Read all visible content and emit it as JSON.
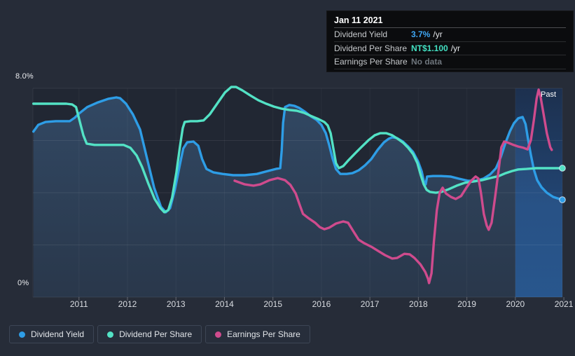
{
  "tooltip": {
    "date": "Jan 11 2021",
    "rows": [
      {
        "label": "Dividend Yield",
        "value": "3.7%",
        "suffix": "/yr",
        "value_color": "#3fa7f4"
      },
      {
        "label": "Dividend Per Share",
        "value": "NT$1.100",
        "suffix": "/yr",
        "value_color": "#43e0c2"
      },
      {
        "label": "Earnings Per Share",
        "value": "No data",
        "suffix": "",
        "value_color": "#6e757c"
      }
    ]
  },
  "legend": {
    "items": [
      {
        "label": "Dividend Yield",
        "color": "#2e9de6"
      },
      {
        "label": "Dividend Per Share",
        "color": "#53e2c5"
      },
      {
        "label": "Earnings Per Share",
        "color": "#cf4b8d"
      }
    ]
  },
  "chart_data": {
    "type": "line",
    "title": "",
    "xlabel": "",
    "ylabel": "",
    "xlim": [
      2010.05,
      2020.97
    ],
    "ylim": [
      0,
      8
    ],
    "y_gridlines_pct": [
      0,
      2,
      4,
      6,
      8
    ],
    "y_axis_labels": {
      "top": "8.0%",
      "bottom": "0%"
    },
    "x_ticks": [
      2011,
      2012,
      2013,
      2014,
      2015,
      2016,
      2017,
      2018,
      2019,
      2020,
      2021
    ],
    "grid": true,
    "legend_position": "bottom",
    "past_region": {
      "start_year": 2020.0,
      "label": "Past"
    },
    "series": [
      {
        "name": "Dividend Yield",
        "unit": "%",
        "color": "#2e9de6",
        "end_dot": true,
        "area_fill": true,
        "points": [
          [
            2010.06,
            6.34
          ],
          [
            2010.16,
            6.6
          ],
          [
            2010.31,
            6.71
          ],
          [
            2010.52,
            6.74
          ],
          [
            2010.81,
            6.74
          ],
          [
            2010.91,
            6.87
          ],
          [
            2011.0,
            7.03
          ],
          [
            2011.17,
            7.28
          ],
          [
            2011.39,
            7.46
          ],
          [
            2011.61,
            7.6
          ],
          [
            2011.77,
            7.65
          ],
          [
            2011.85,
            7.62
          ],
          [
            2011.97,
            7.41
          ],
          [
            2012.11,
            7.01
          ],
          [
            2012.26,
            6.42
          ],
          [
            2012.4,
            5.34
          ],
          [
            2012.55,
            4.19
          ],
          [
            2012.69,
            3.46
          ],
          [
            2012.79,
            3.25
          ],
          [
            2012.88,
            3.41
          ],
          [
            2012.98,
            4.13
          ],
          [
            2013.08,
            5.07
          ],
          [
            2013.15,
            5.69
          ],
          [
            2013.23,
            5.93
          ],
          [
            2013.36,
            5.96
          ],
          [
            2013.46,
            5.8
          ],
          [
            2013.54,
            5.29
          ],
          [
            2013.63,
            4.91
          ],
          [
            2013.77,
            4.78
          ],
          [
            2013.96,
            4.72
          ],
          [
            2014.18,
            4.67
          ],
          [
            2014.42,
            4.67
          ],
          [
            2014.67,
            4.72
          ],
          [
            2014.89,
            4.83
          ],
          [
            2015.06,
            4.91
          ],
          [
            2015.15,
            4.94
          ],
          [
            2015.18,
            5.61
          ],
          [
            2015.21,
            6.68
          ],
          [
            2015.25,
            7.28
          ],
          [
            2015.34,
            7.36
          ],
          [
            2015.44,
            7.33
          ],
          [
            2015.54,
            7.25
          ],
          [
            2015.67,
            7.09
          ],
          [
            2015.78,
            6.93
          ],
          [
            2015.9,
            6.79
          ],
          [
            2016.0,
            6.6
          ],
          [
            2016.09,
            6.28
          ],
          [
            2016.16,
            5.83
          ],
          [
            2016.23,
            5.32
          ],
          [
            2016.3,
            4.91
          ],
          [
            2016.39,
            4.72
          ],
          [
            2016.52,
            4.72
          ],
          [
            2016.64,
            4.75
          ],
          [
            2016.77,
            4.86
          ],
          [
            2016.9,
            5.05
          ],
          [
            2017.03,
            5.29
          ],
          [
            2017.16,
            5.64
          ],
          [
            2017.29,
            5.93
          ],
          [
            2017.39,
            6.07
          ],
          [
            2017.46,
            6.12
          ],
          [
            2017.56,
            6.09
          ],
          [
            2017.68,
            5.96
          ],
          [
            2017.79,
            5.77
          ],
          [
            2017.89,
            5.56
          ],
          [
            2017.99,
            5.21
          ],
          [
            2018.07,
            4.81
          ],
          [
            2018.11,
            4.46
          ],
          [
            2018.15,
            4.32
          ],
          [
            2018.18,
            4.62
          ],
          [
            2018.3,
            4.64
          ],
          [
            2018.47,
            4.64
          ],
          [
            2018.66,
            4.62
          ],
          [
            2018.83,
            4.54
          ],
          [
            2019.02,
            4.46
          ],
          [
            2019.19,
            4.46
          ],
          [
            2019.34,
            4.54
          ],
          [
            2019.48,
            4.7
          ],
          [
            2019.6,
            4.94
          ],
          [
            2019.7,
            5.37
          ],
          [
            2019.8,
            5.93
          ],
          [
            2019.89,
            6.36
          ],
          [
            2019.97,
            6.66
          ],
          [
            2020.06,
            6.85
          ],
          [
            2020.15,
            6.9
          ],
          [
            2020.21,
            6.63
          ],
          [
            2020.26,
            6.07
          ],
          [
            2020.32,
            5.45
          ],
          [
            2020.38,
            4.89
          ],
          [
            2020.45,
            4.48
          ],
          [
            2020.54,
            4.21
          ],
          [
            2020.65,
            4.0
          ],
          [
            2020.78,
            3.84
          ],
          [
            2020.88,
            3.78
          ],
          [
            2020.97,
            3.73
          ]
        ]
      },
      {
        "name": "Dividend Per Share",
        "unit": "NT$ (scaled)",
        "color": "#53e2c5",
        "end_dot": true,
        "area_fill": false,
        "points": [
          [
            2010.06,
            7.41
          ],
          [
            2010.38,
            7.41
          ],
          [
            2010.74,
            7.41
          ],
          [
            2010.86,
            7.38
          ],
          [
            2010.94,
            7.28
          ],
          [
            2011.01,
            6.77
          ],
          [
            2011.09,
            6.2
          ],
          [
            2011.16,
            5.88
          ],
          [
            2011.32,
            5.83
          ],
          [
            2011.53,
            5.83
          ],
          [
            2011.75,
            5.83
          ],
          [
            2011.92,
            5.83
          ],
          [
            2012.06,
            5.72
          ],
          [
            2012.19,
            5.42
          ],
          [
            2012.3,
            4.99
          ],
          [
            2012.43,
            4.35
          ],
          [
            2012.56,
            3.76
          ],
          [
            2012.68,
            3.41
          ],
          [
            2012.76,
            3.25
          ],
          [
            2012.84,
            3.33
          ],
          [
            2012.92,
            3.81
          ],
          [
            2013.01,
            4.78
          ],
          [
            2013.08,
            5.74
          ],
          [
            2013.14,
            6.47
          ],
          [
            2013.18,
            6.71
          ],
          [
            2013.3,
            6.74
          ],
          [
            2013.44,
            6.74
          ],
          [
            2013.57,
            6.77
          ],
          [
            2013.7,
            7.01
          ],
          [
            2013.86,
            7.44
          ],
          [
            2014.01,
            7.84
          ],
          [
            2014.14,
            8.05
          ],
          [
            2014.24,
            8.05
          ],
          [
            2014.37,
            7.92
          ],
          [
            2014.53,
            7.73
          ],
          [
            2014.7,
            7.54
          ],
          [
            2014.86,
            7.41
          ],
          [
            2015.02,
            7.3
          ],
          [
            2015.18,
            7.22
          ],
          [
            2015.34,
            7.17
          ],
          [
            2015.49,
            7.14
          ],
          [
            2015.64,
            7.06
          ],
          [
            2015.8,
            6.93
          ],
          [
            2015.94,
            6.82
          ],
          [
            2016.06,
            6.71
          ],
          [
            2016.13,
            6.58
          ],
          [
            2016.19,
            6.28
          ],
          [
            2016.25,
            5.66
          ],
          [
            2016.3,
            5.13
          ],
          [
            2016.36,
            4.94
          ],
          [
            2016.45,
            5.02
          ],
          [
            2016.55,
            5.23
          ],
          [
            2016.68,
            5.48
          ],
          [
            2016.82,
            5.74
          ],
          [
            2016.97,
            6.01
          ],
          [
            2017.1,
            6.2
          ],
          [
            2017.21,
            6.28
          ],
          [
            2017.34,
            6.28
          ],
          [
            2017.46,
            6.2
          ],
          [
            2017.57,
            6.07
          ],
          [
            2017.69,
            5.91
          ],
          [
            2017.79,
            5.72
          ],
          [
            2017.89,
            5.48
          ],
          [
            2017.98,
            5.13
          ],
          [
            2018.05,
            4.67
          ],
          [
            2018.11,
            4.32
          ],
          [
            2018.17,
            4.11
          ],
          [
            2018.24,
            4.03
          ],
          [
            2018.36,
            4.0
          ],
          [
            2018.47,
            4.03
          ],
          [
            2018.62,
            4.13
          ],
          [
            2018.79,
            4.27
          ],
          [
            2018.96,
            4.38
          ],
          [
            2019.14,
            4.43
          ],
          [
            2019.31,
            4.48
          ],
          [
            2019.48,
            4.56
          ],
          [
            2019.66,
            4.64
          ],
          [
            2019.8,
            4.75
          ],
          [
            2019.93,
            4.83
          ],
          [
            2020.06,
            4.89
          ],
          [
            2020.23,
            4.91
          ],
          [
            2020.42,
            4.94
          ],
          [
            2020.64,
            4.94
          ],
          [
            2020.97,
            4.94
          ]
        ]
      },
      {
        "name": "Earnings Per Share",
        "unit": "NT$ (scaled)",
        "color": "#cf4b8d",
        "end_dot": false,
        "area_fill": false,
        "points": [
          [
            2014.21,
            4.46
          ],
          [
            2014.42,
            4.32
          ],
          [
            2014.6,
            4.27
          ],
          [
            2014.74,
            4.32
          ],
          [
            2014.93,
            4.48
          ],
          [
            2015.1,
            4.56
          ],
          [
            2015.25,
            4.48
          ],
          [
            2015.36,
            4.3
          ],
          [
            2015.47,
            3.97
          ],
          [
            2015.55,
            3.54
          ],
          [
            2015.62,
            3.19
          ],
          [
            2015.73,
            3.03
          ],
          [
            2015.87,
            2.85
          ],
          [
            2015.97,
            2.68
          ],
          [
            2016.06,
            2.6
          ],
          [
            2016.16,
            2.66
          ],
          [
            2016.3,
            2.82
          ],
          [
            2016.45,
            2.9
          ],
          [
            2016.55,
            2.85
          ],
          [
            2016.66,
            2.52
          ],
          [
            2016.77,
            2.2
          ],
          [
            2016.88,
            2.07
          ],
          [
            2017.03,
            1.93
          ],
          [
            2017.17,
            1.77
          ],
          [
            2017.31,
            1.61
          ],
          [
            2017.46,
            1.48
          ],
          [
            2017.56,
            1.5
          ],
          [
            2017.71,
            1.66
          ],
          [
            2017.82,
            1.64
          ],
          [
            2017.92,
            1.5
          ],
          [
            2018.04,
            1.26
          ],
          [
            2018.14,
            0.97
          ],
          [
            2018.2,
            0.7
          ],
          [
            2018.22,
            0.54
          ],
          [
            2018.27,
            0.91
          ],
          [
            2018.32,
            2.12
          ],
          [
            2018.38,
            3.33
          ],
          [
            2018.44,
            4.0
          ],
          [
            2018.5,
            4.19
          ],
          [
            2018.57,
            3.97
          ],
          [
            2018.67,
            3.84
          ],
          [
            2018.77,
            3.76
          ],
          [
            2018.88,
            3.87
          ],
          [
            2018.99,
            4.19
          ],
          [
            2019.09,
            4.46
          ],
          [
            2019.18,
            4.62
          ],
          [
            2019.24,
            4.54
          ],
          [
            2019.29,
            4.0
          ],
          [
            2019.35,
            3.19
          ],
          [
            2019.41,
            2.74
          ],
          [
            2019.45,
            2.58
          ],
          [
            2019.51,
            2.85
          ],
          [
            2019.58,
            3.81
          ],
          [
            2019.66,
            4.94
          ],
          [
            2019.71,
            5.74
          ],
          [
            2019.77,
            5.96
          ],
          [
            2019.86,
            5.91
          ],
          [
            2019.96,
            5.83
          ],
          [
            2020.06,
            5.77
          ],
          [
            2020.17,
            5.72
          ],
          [
            2020.25,
            5.66
          ],
          [
            2020.32,
            6.01
          ],
          [
            2020.38,
            6.77
          ],
          [
            2020.44,
            7.62
          ],
          [
            2020.48,
            7.95
          ],
          [
            2020.52,
            7.68
          ],
          [
            2020.58,
            7.03
          ],
          [
            2020.65,
            6.28
          ],
          [
            2020.72,
            5.74
          ],
          [
            2020.75,
            5.64
          ]
        ]
      }
    ]
  }
}
